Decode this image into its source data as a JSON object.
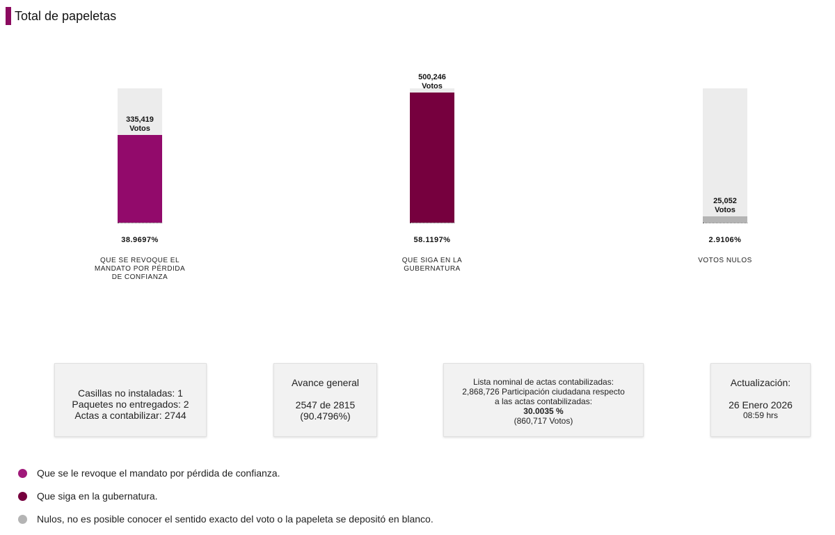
{
  "header": {
    "title": "Total de papeletas",
    "accent_color": "#8b0a5f"
  },
  "chart_data": {
    "type": "bar",
    "categories": [
      "QUE SE REVOQUE EL MANDATO POR PÉRDIDA DE CONFIANZA",
      "QUE SIGA EN LA GUBERNATURA",
      "VOTOS NULOS"
    ],
    "values": [
      335419,
      500246,
      25052
    ],
    "value_labels": [
      "335,419",
      "500,246",
      "25,052"
    ],
    "unit_label": "Votos",
    "percentages": [
      "38.9697%",
      "58.1197%",
      "2.9106%"
    ],
    "colors": [
      "#920a6b",
      "#76003e",
      "#b4b4b4"
    ],
    "track_color": "#ececec",
    "ylim": [
      0,
      515000
    ]
  },
  "cards": {
    "casillas": {
      "line1": "Casillas no instaladas: 1",
      "line2": "Paquetes no entregados: 2",
      "line3": "Actas a contabilizar: 2744"
    },
    "avance": {
      "title": "Avance general",
      "value": "2547 de 2815",
      "percent": "(90.4796%)"
    },
    "lista": {
      "line1": "Lista nominal de actas contabilizadas:",
      "line2": "2,868,726 Participación ciudadana respecto",
      "line3": "a las actas contabilizadas:",
      "percent": "30.0035 %",
      "votes": "(860,717 Votos)"
    },
    "actualizacion": {
      "title": "Actualización:",
      "date": "26 Enero 2026",
      "time": "08:59 hrs"
    }
  },
  "legend": [
    {
      "label": "Que se le revoque el mandato por pérdida de confianza.",
      "color": "#a0197a"
    },
    {
      "label": "Que siga en la gubernatura.",
      "color": "#76003e"
    },
    {
      "label": "Nulos, no es posible conocer el sentido exacto del voto o la papeleta se depositó en blanco.",
      "color": "#b4b4b4"
    }
  ]
}
